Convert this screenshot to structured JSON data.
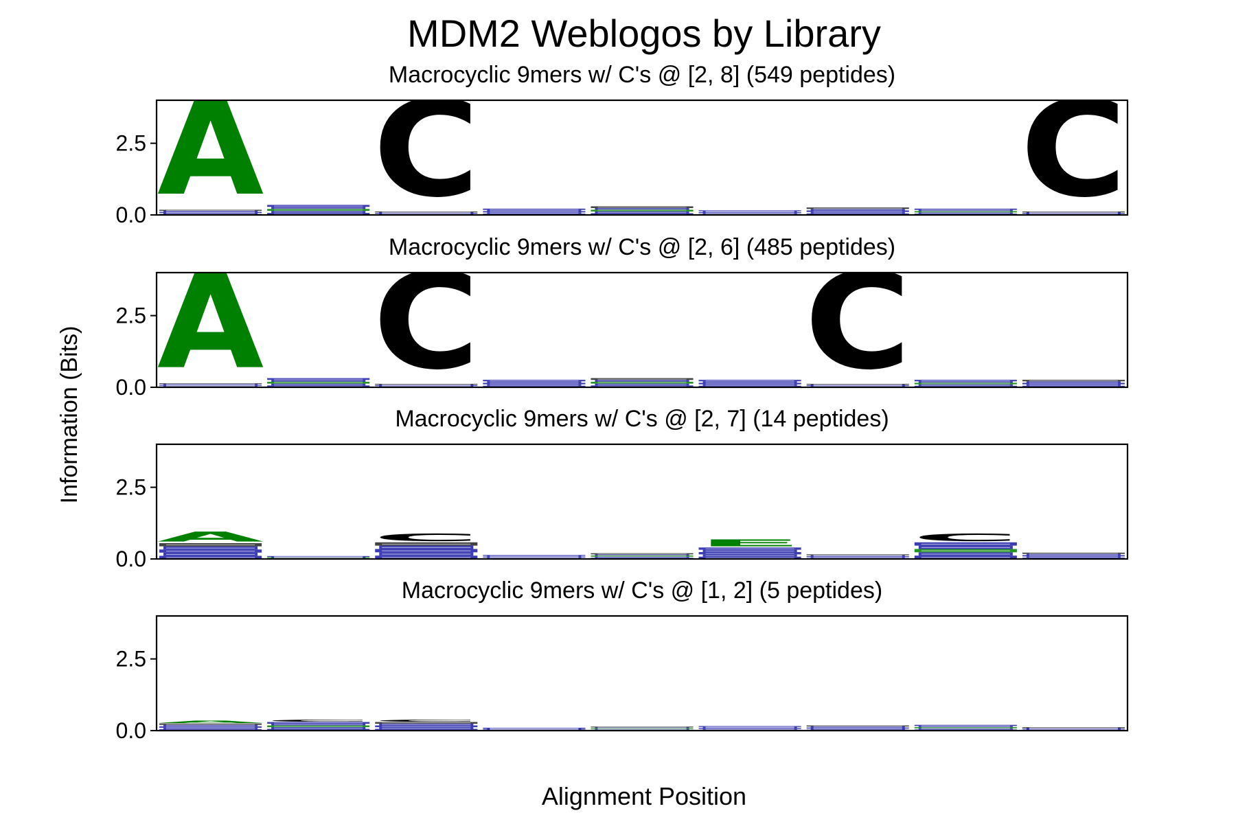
{
  "chart_data": {
    "type": "sequence-logo",
    "title": "MDM2 Weblogos by Library",
    "xlabel": "Alignment Position",
    "ylabel": "Information (Bits)",
    "ylim": [
      0,
      4.0
    ],
    "yticks": [
      "0.0",
      "2.5"
    ],
    "ytick_values": [
      0.0,
      2.5
    ],
    "positions": [
      1,
      2,
      3,
      4,
      5,
      6,
      7,
      8,
      9
    ],
    "colors": {
      "A": "#008000",
      "C": "#000000",
      "minor": "#1a1aa6",
      "minor_alt": "#008000"
    },
    "panels": [
      {
        "subtitle": "Macrocyclic 9mers w/ C's @ [2, 8] (549 peptides)",
        "columns": [
          {
            "letters": [
              {
                "l": "A",
                "h": 3.85
              }
            ],
            "noise": 0.18
          },
          {
            "letters": [],
            "noise": 0.35
          },
          {
            "letters": [
              {
                "l": "C",
                "h": 3.9
              }
            ],
            "noise": 0.12
          },
          {
            "letters": [],
            "noise": 0.22
          },
          {
            "letters": [],
            "noise": 0.3
          },
          {
            "letters": [],
            "noise": 0.16
          },
          {
            "letters": [],
            "noise": 0.26
          },
          {
            "letters": [],
            "noise": 0.22
          },
          {
            "letters": [
              {
                "l": "C",
                "h": 3.9
              }
            ],
            "noise": 0.12
          }
        ]
      },
      {
        "subtitle": "Macrocyclic 9mers w/ C's @ [2, 6] (485 peptides)",
        "columns": [
          {
            "letters": [
              {
                "l": "A",
                "h": 3.85
              }
            ],
            "noise": 0.14
          },
          {
            "letters": [],
            "noise": 0.32
          },
          {
            "letters": [
              {
                "l": "C",
                "h": 3.9
              }
            ],
            "noise": 0.12
          },
          {
            "letters": [],
            "noise": 0.26
          },
          {
            "letters": [],
            "noise": 0.32
          },
          {
            "letters": [],
            "noise": 0.26
          },
          {
            "letters": [
              {
                "l": "C",
                "h": 3.9
              }
            ],
            "noise": 0.12
          },
          {
            "letters": [],
            "noise": 0.26
          },
          {
            "letters": [],
            "noise": 0.26
          }
        ]
      },
      {
        "subtitle": "Macrocyclic 9mers w/ C's @ [2, 7] (14 peptides)",
        "columns": [
          {
            "letters": [
              {
                "l": "A",
                "h": 0.4
              }
            ],
            "noise": 0.55
          },
          {
            "letters": [],
            "noise": 0.1
          },
          {
            "letters": [
              {
                "l": "C",
                "h": 0.3
              }
            ],
            "noise": 0.58
          },
          {
            "letters": [],
            "noise": 0.14
          },
          {
            "letters": [],
            "noise": 0.2
          },
          {
            "letters": [
              {
                "l": "E",
                "h": 0.28
              }
            ],
            "noise": 0.4
          },
          {
            "letters": [],
            "noise": 0.16
          },
          {
            "letters": [
              {
                "l": "C",
                "h": 0.3
              }
            ],
            "noise": 0.58
          },
          {
            "letters": [],
            "noise": 0.22
          }
        ]
      },
      {
        "subtitle": "Macrocyclic 9mers w/ C's @ [1, 2] (5 peptides)",
        "columns": [
          {
            "letters": [
              {
                "l": "A",
                "h": 0.1
              }
            ],
            "noise": 0.25
          },
          {
            "letters": [
              {
                "l": "C",
                "h": 0.08
              }
            ],
            "noise": 0.3
          },
          {
            "letters": [
              {
                "l": "C",
                "h": 0.08
              }
            ],
            "noise": 0.3
          },
          {
            "letters": [],
            "noise": 0.1
          },
          {
            "letters": [],
            "noise": 0.14
          },
          {
            "letters": [],
            "noise": 0.16
          },
          {
            "letters": [],
            "noise": 0.18
          },
          {
            "letters": [],
            "noise": 0.2
          },
          {
            "letters": [],
            "noise": 0.12
          }
        ]
      }
    ]
  }
}
